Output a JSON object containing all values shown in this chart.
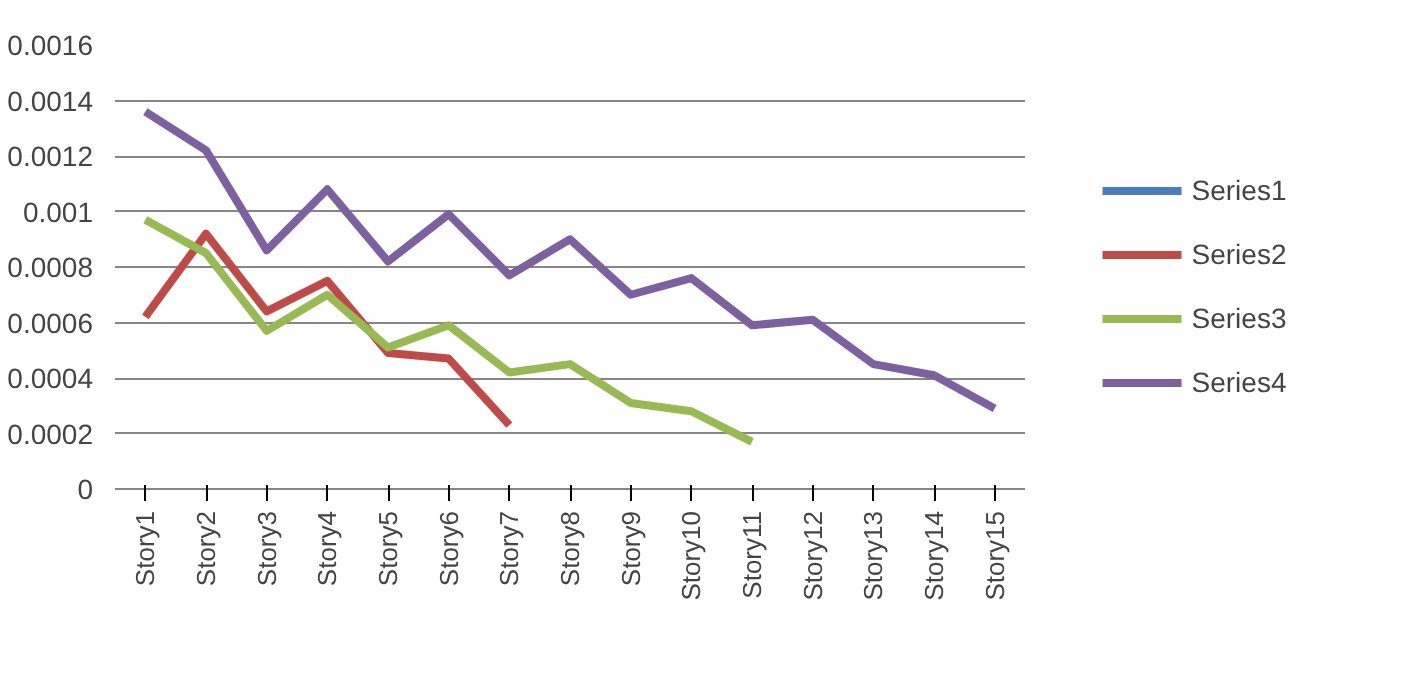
{
  "chart_data": {
    "type": "line",
    "categories": [
      "Story1",
      "Story2",
      "Story3",
      "Story4",
      "Story5",
      "Story6",
      "Story7",
      "Story8",
      "Story9",
      "Story10",
      "Story11",
      "Story12",
      "Story13",
      "Story14",
      "Story15"
    ],
    "series": [
      {
        "name": "Series1",
        "color": "#4a7ebb",
        "values": [
          null,
          null,
          null,
          null,
          null,
          null,
          null,
          null,
          null,
          null,
          null,
          null,
          null,
          null,
          null
        ]
      },
      {
        "name": "Series2",
        "color": "#be4b48",
        "values": [
          0.00062,
          0.00092,
          0.00064,
          0.00075,
          0.00049,
          0.00047,
          0.00023,
          null,
          null,
          null,
          null,
          null,
          null,
          null,
          null
        ]
      },
      {
        "name": "Series3",
        "color": "#98b954",
        "values": [
          0.00097,
          0.00085,
          0.00057,
          0.0007,
          0.00051,
          0.00059,
          0.00042,
          0.00045,
          0.00031,
          0.00028,
          0.00017,
          null,
          null,
          null,
          null
        ]
      },
      {
        "name": "Series4",
        "color": "#7d60a0",
        "values": [
          0.00136,
          0.00122,
          0.00086,
          0.00108,
          0.00082,
          0.00099,
          0.00077,
          0.0009,
          0.0007,
          0.00076,
          0.00059,
          0.00061,
          0.00045,
          0.00041,
          0.00029
        ]
      }
    ],
    "ylim": [
      0,
      0.0016
    ],
    "yticks": [
      0,
      0.0002,
      0.0004,
      0.0006,
      0.0008,
      0.001,
      0.0012,
      0.0014,
      0.0016
    ],
    "grid": "y",
    "legend": "right",
    "line_style": "solid"
  }
}
